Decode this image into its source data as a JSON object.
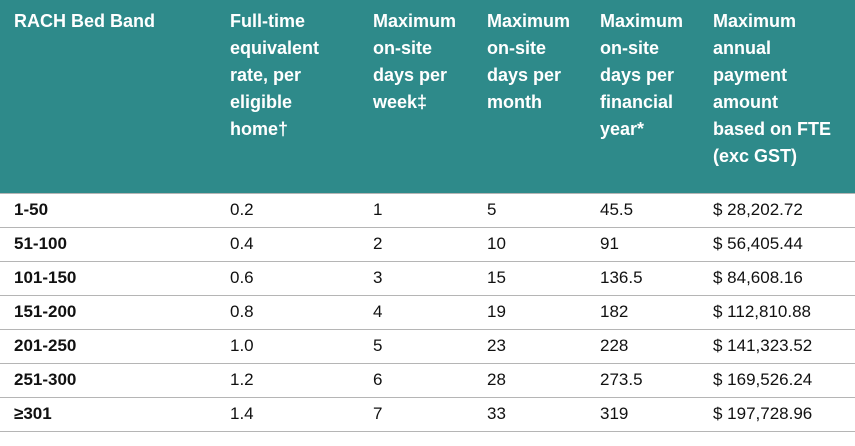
{
  "table": {
    "header": [
      "RACH Bed Band",
      "Full-time equivalent rate, per eligible home†",
      "Maximum on-site days per week‡",
      "Maximum on-site days per month",
      "Maximum on-site days per financial year*",
      "Maximum annual payment amount based on FTE (exc GST)"
    ],
    "rows": [
      [
        "1-50",
        "0.2",
        "1",
        "5",
        "45.5",
        "$ 28,202.72"
      ],
      [
        "51-100",
        "0.4",
        "2",
        "10",
        "91",
        "$ 56,405.44"
      ],
      [
        "101-150",
        "0.6",
        "3",
        "15",
        "136.5",
        "$ 84,608.16"
      ],
      [
        "151-200",
        "0.8",
        "4",
        "19",
        "182",
        "$ 112,810.88"
      ],
      [
        "201-250",
        "1.0",
        "5",
        "23",
        "228",
        "$ 141,323.52"
      ],
      [
        "251-300",
        "1.2",
        "6",
        "28",
        "273.5",
        "$ 169,526.24"
      ],
      [
        "≥301",
        "1.4",
        "7",
        "33",
        "319",
        "$ 197,728.96"
      ]
    ]
  }
}
